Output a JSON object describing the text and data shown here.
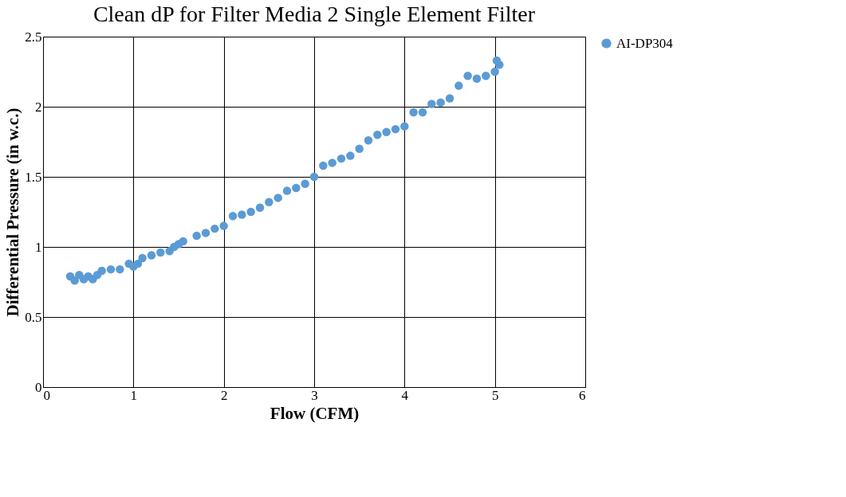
{
  "chart_data": {
    "type": "scatter",
    "title": "Clean dP for Filter Media 2 Single Element Filter",
    "xlabel": "Flow (CFM)",
    "ylabel": "Differential Pressure (in w.c.)",
    "xlim": [
      0,
      6
    ],
    "xticks": [
      0,
      1,
      2,
      3,
      4,
      5,
      6
    ],
    "ylim": [
      0,
      2.5
    ],
    "yticks": [
      0,
      0.5,
      1,
      1.5,
      2,
      2.5
    ],
    "grid": true,
    "legend": "right",
    "marker": "circle",
    "series": [
      {
        "name": "AI-DP304",
        "color": "#5b9bd5",
        "x": [
          0.3,
          0.35,
          0.4,
          0.45,
          0.5,
          0.55,
          0.6,
          0.65,
          0.75,
          0.85,
          0.95,
          1.0,
          1.05,
          1.1,
          1.2,
          1.3,
          1.4,
          1.45,
          1.5,
          1.55,
          1.7,
          1.8,
          1.9,
          2.0,
          2.1,
          2.2,
          2.3,
          2.4,
          2.5,
          2.6,
          2.7,
          2.8,
          2.9,
          3.0,
          3.1,
          3.2,
          3.3,
          3.4,
          3.5,
          3.6,
          3.7,
          3.8,
          3.9,
          4.0,
          4.1,
          4.2,
          4.3,
          4.4,
          4.5,
          4.6,
          4.7,
          4.8,
          4.9,
          5.0,
          5.02,
          5.05
        ],
        "values": [
          0.79,
          0.76,
          0.8,
          0.77,
          0.79,
          0.77,
          0.8,
          0.83,
          0.84,
          0.84,
          0.88,
          0.86,
          0.88,
          0.92,
          0.94,
          0.96,
          0.97,
          1.0,
          1.02,
          1.04,
          1.08,
          1.1,
          1.13,
          1.15,
          1.22,
          1.23,
          1.25,
          1.28,
          1.32,
          1.35,
          1.4,
          1.42,
          1.45,
          1.5,
          1.58,
          1.6,
          1.63,
          1.65,
          1.7,
          1.76,
          1.8,
          1.82,
          1.84,
          1.86,
          1.96,
          1.96,
          2.02,
          2.03,
          2.06,
          2.15,
          2.22,
          2.2,
          2.22,
          2.25,
          2.33,
          2.3
        ]
      }
    ]
  }
}
